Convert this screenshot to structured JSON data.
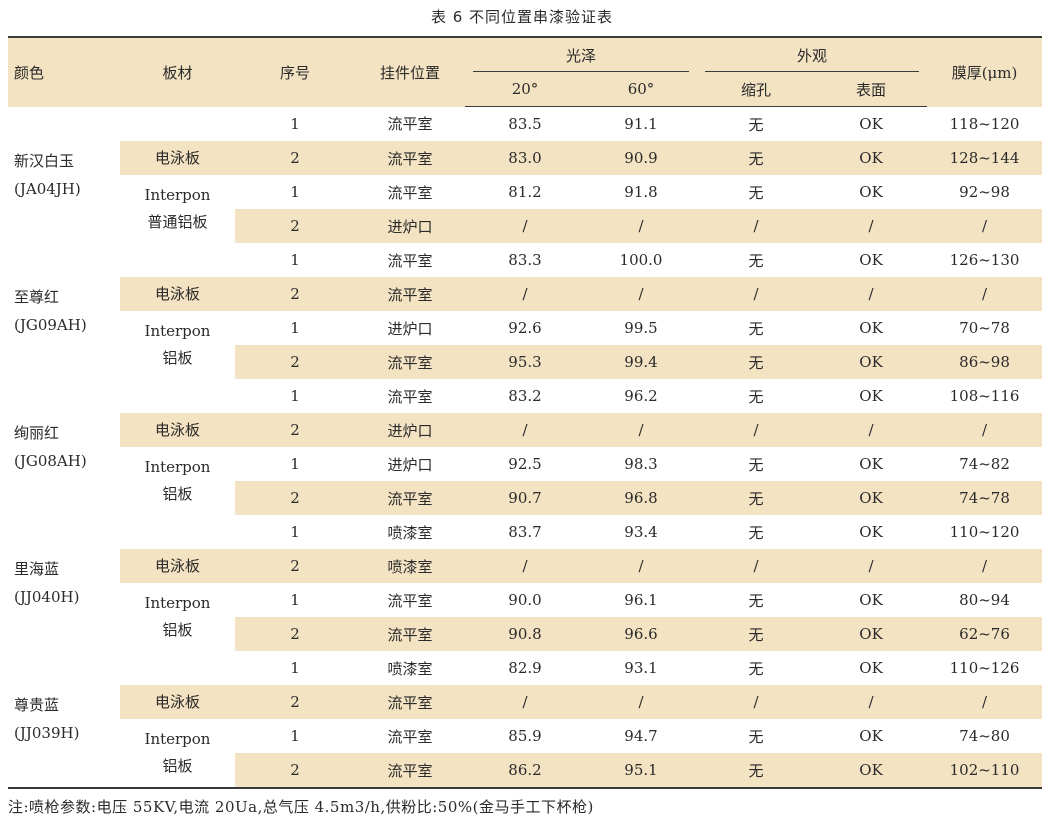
{
  "caption": "表 6 不同位置串漆验证表",
  "headers": {
    "color": "颜色",
    "board": "板材",
    "seq": "序号",
    "position": "挂件位置",
    "gloss": "光泽",
    "gloss_20": "20°",
    "gloss_60": "60°",
    "appearance": "外观",
    "shrink": "缩孔",
    "surface": "表面",
    "thickness": "膜厚(μm)"
  },
  "groups": [
    {
      "color_name": "新汉白玉",
      "color_code": "(JA04JH)",
      "board_ep": "电泳板",
      "board_int_1": "Interpon",
      "board_int_2": "普通铝板",
      "rows": [
        {
          "seq": "1",
          "pos": "流平室",
          "g20": "83.5",
          "g60": "91.1",
          "shrink": "无",
          "surface": "OK",
          "thick": "118~120"
        },
        {
          "seq": "2",
          "pos": "流平室",
          "g20": "83.0",
          "g60": "90.9",
          "shrink": "无",
          "surface": "OK",
          "thick": "128~144"
        },
        {
          "seq": "1",
          "pos": "流平室",
          "g20": "81.2",
          "g60": "91.8",
          "shrink": "无",
          "surface": "OK",
          "thick": "92~98"
        },
        {
          "seq": "2",
          "pos": "进炉口",
          "g20": "/",
          "g60": "/",
          "shrink": "/",
          "surface": "/",
          "thick": "/"
        }
      ]
    },
    {
      "color_name": "至尊红",
      "color_code": "(JG09AH)",
      "board_ep": "电泳板",
      "board_int_1": "Interpon",
      "board_int_2": "铝板",
      "rows": [
        {
          "seq": "1",
          "pos": "流平室",
          "g20": "83.3",
          "g60": "100.0",
          "shrink": "无",
          "surface": "OK",
          "thick": "126~130"
        },
        {
          "seq": "2",
          "pos": "流平室",
          "g20": "/",
          "g60": "/",
          "shrink": "/",
          "surface": "/",
          "thick": "/"
        },
        {
          "seq": "1",
          "pos": "进炉口",
          "g20": "92.6",
          "g60": "99.5",
          "shrink": "无",
          "surface": "OK",
          "thick": "70~78"
        },
        {
          "seq": "2",
          "pos": "流平室",
          "g20": "95.3",
          "g60": "99.4",
          "shrink": "无",
          "surface": "OK",
          "thick": "86~98"
        }
      ]
    },
    {
      "color_name": "绚丽红",
      "color_code": "(JG08AH)",
      "board_ep": "电泳板",
      "board_int_1": "Interpon",
      "board_int_2": "铝板",
      "rows": [
        {
          "seq": "1",
          "pos": "流平室",
          "g20": "83.2",
          "g60": "96.2",
          "shrink": "无",
          "surface": "OK",
          "thick": "108~116"
        },
        {
          "seq": "2",
          "pos": "进炉口",
          "g20": "/",
          "g60": "/",
          "shrink": "/",
          "surface": "/",
          "thick": "/"
        },
        {
          "seq": "1",
          "pos": "进炉口",
          "g20": "92.5",
          "g60": "98.3",
          "shrink": "无",
          "surface": "OK",
          "thick": "74~82"
        },
        {
          "seq": "2",
          "pos": "流平室",
          "g20": "90.7",
          "g60": "96.8",
          "shrink": "无",
          "surface": "OK",
          "thick": "74~78"
        }
      ]
    },
    {
      "color_name": "里海蓝",
      "color_code": "(JJ040H)",
      "board_ep": "电泳板",
      "board_int_1": "Interpon",
      "board_int_2": "铝板",
      "rows": [
        {
          "seq": "1",
          "pos": "喷漆室",
          "g20": "83.7",
          "g60": "93.4",
          "shrink": "无",
          "surface": "OK",
          "thick": "110~120"
        },
        {
          "seq": "2",
          "pos": "喷漆室",
          "g20": "/",
          "g60": "/",
          "shrink": "/",
          "surface": "/",
          "thick": "/"
        },
        {
          "seq": "1",
          "pos": "流平室",
          "g20": "90.0",
          "g60": "96.1",
          "shrink": "无",
          "surface": "OK",
          "thick": "80~94"
        },
        {
          "seq": "2",
          "pos": "流平室",
          "g20": "90.8",
          "g60": "96.6",
          "shrink": "无",
          "surface": "OK",
          "thick": "62~76"
        }
      ]
    },
    {
      "color_name": "尊贵蓝",
      "color_code": "(JJ039H)",
      "board_ep": "电泳板",
      "board_int_1": "Interpon",
      "board_int_2": "铝板",
      "rows": [
        {
          "seq": "1",
          "pos": "喷漆室",
          "g20": "82.9",
          "g60": "93.1",
          "shrink": "无",
          "surface": "OK",
          "thick": "110~126"
        },
        {
          "seq": "2",
          "pos": "流平室",
          "g20": "/",
          "g60": "/",
          "shrink": "/",
          "surface": "/",
          "thick": "/"
        },
        {
          "seq": "1",
          "pos": "流平室",
          "g20": "85.9",
          "g60": "94.7",
          "shrink": "无",
          "surface": "OK",
          "thick": "74~80"
        },
        {
          "seq": "2",
          "pos": "流平室",
          "g20": "86.2",
          "g60": "95.1",
          "shrink": "无",
          "surface": "OK",
          "thick": "102~110"
        }
      ]
    }
  ],
  "note": "注:喷枪参数:电压 55KV,电流 20Ua,总气压 4.5m3/h,供粉比:50%(金马手工下杯枪)"
}
